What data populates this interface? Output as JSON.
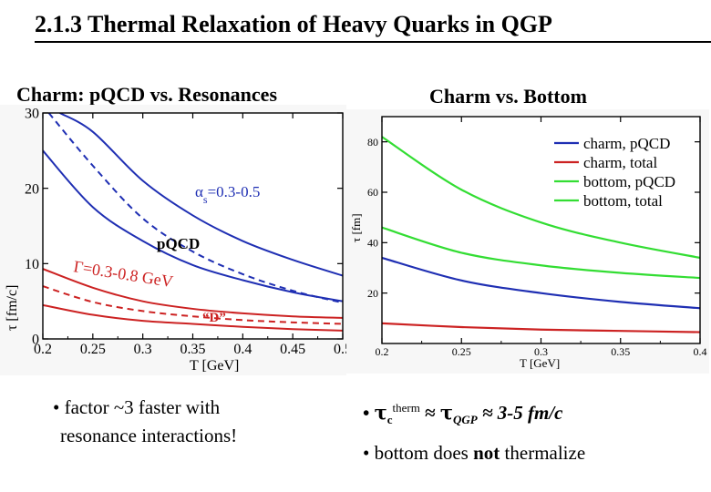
{
  "slide": {
    "title": "2.1.3 Thermal Relaxation of Heavy Quarks in QGP",
    "left_panel_title": "Charm: pQCD vs. Resonances",
    "right_panel_title": "Charm vs. Bottom"
  },
  "colors": {
    "blue": "#1f2fb3",
    "red": "#cc2222",
    "green": "#33dd33",
    "axis": "#000000"
  },
  "chart_data": [
    {
      "type": "line",
      "title": "Charm: pQCD vs. Resonances",
      "xlabel": "T [GeV]",
      "ylabel": "τ [fm/c]",
      "xlim": [
        0.2,
        0.5
      ],
      "ylim": [
        0,
        30
      ],
      "x_ticks": [
        "0.2",
        "0.25",
        "0.3",
        "0.35",
        "0.4",
        "0.45",
        "0.5"
      ],
      "y_ticks": [
        "0",
        "10",
        "20",
        "30"
      ],
      "annotations": {
        "alpha_prefix": "α",
        "alpha_sub": "s",
        "alpha_text": "=0.3-0.5",
        "pqcd": "pQCD",
        "gamma": "Γ=0.3-0.8 GeV",
        "d_label": "“D”"
      },
      "series": [
        {
          "color": "blue",
          "dash": false,
          "x": [
            0.2,
            0.25,
            0.3,
            0.35,
            0.4,
            0.45,
            0.5
          ],
          "y": [
            25,
            17.5,
            13,
            9.8,
            7.8,
            6.2,
            5.0
          ]
        },
        {
          "color": "blue",
          "dash": true,
          "x": [
            0.206,
            0.25,
            0.3,
            0.35,
            0.4,
            0.45,
            0.5
          ],
          "y": [
            30,
            23,
            16,
            11.6,
            8.6,
            6.4,
            4.8
          ]
        },
        {
          "color": "blue",
          "dash": false,
          "x": [
            0.217,
            0.25,
            0.3,
            0.35,
            0.4,
            0.45,
            0.5
          ],
          "y": [
            30,
            27.5,
            21,
            16.4,
            13.0,
            10.5,
            8.4
          ]
        },
        {
          "color": "red",
          "dash": false,
          "x": [
            0.2,
            0.25,
            0.3,
            0.35,
            0.4,
            0.45,
            0.5
          ],
          "y": [
            9.3,
            6.8,
            5.0,
            4.0,
            3.4,
            3.0,
            2.8
          ]
        },
        {
          "color": "red",
          "dash": true,
          "x": [
            0.2,
            0.25,
            0.3,
            0.35,
            0.4,
            0.45,
            0.5
          ],
          "y": [
            7.0,
            4.9,
            3.7,
            3.0,
            2.5,
            2.2,
            2.0
          ]
        },
        {
          "color": "red",
          "dash": false,
          "x": [
            0.2,
            0.25,
            0.3,
            0.35,
            0.4,
            0.45,
            0.5
          ],
          "y": [
            4.5,
            3.2,
            2.4,
            2.0,
            1.6,
            1.3,
            1.1
          ]
        }
      ]
    },
    {
      "type": "line",
      "title": "Charm vs. Bottom",
      "xlabel": "T [GeV]",
      "ylabel": "τ [fm]",
      "xlim": [
        0.2,
        0.4
      ],
      "ylim": [
        0,
        90
      ],
      "x_ticks": [
        "0.2",
        "0.25",
        "0.3",
        "0.35",
        "0.4"
      ],
      "y_ticks": [
        "20",
        "40",
        "60",
        "80"
      ],
      "legend_position": "top-right",
      "series": [
        {
          "name": "charm, pQCD",
          "color": "blue",
          "x": [
            0.2,
            0.25,
            0.3,
            0.35,
            0.4
          ],
          "y": [
            34,
            25,
            20,
            16.5,
            14
          ]
        },
        {
          "name": "charm, total",
          "color": "red",
          "x": [
            0.2,
            0.25,
            0.3,
            0.35,
            0.4
          ],
          "y": [
            8,
            6.5,
            5.5,
            5,
            4.5
          ]
        },
        {
          "name": "bottom, pQCD",
          "color": "green",
          "x": [
            0.2,
            0.25,
            0.3,
            0.35,
            0.4
          ],
          "y": [
            82,
            61,
            48,
            40,
            34
          ]
        },
        {
          "name": "bottom, total",
          "color": "green",
          "x": [
            0.2,
            0.25,
            0.3,
            0.35,
            0.4
          ],
          "y": [
            46,
            36,
            31,
            28,
            26
          ]
        }
      ]
    }
  ],
  "bullets": {
    "left_line1": "• factor ~3 faster with",
    "left_line2": "resonance interactions!",
    "right1_prefix": "•",
    "right1_tau": "τ",
    "right1_sub": "c",
    "right1_sup": "therm",
    "right1_approx1": "≈",
    "right1_tau2": "τ",
    "right1_qgp": "QGP",
    "right1_rest": "≈ 3-5 fm/c",
    "right2_pre": "• bottom does",
    "right2_bold": "not",
    "right2_post": "thermalize"
  }
}
